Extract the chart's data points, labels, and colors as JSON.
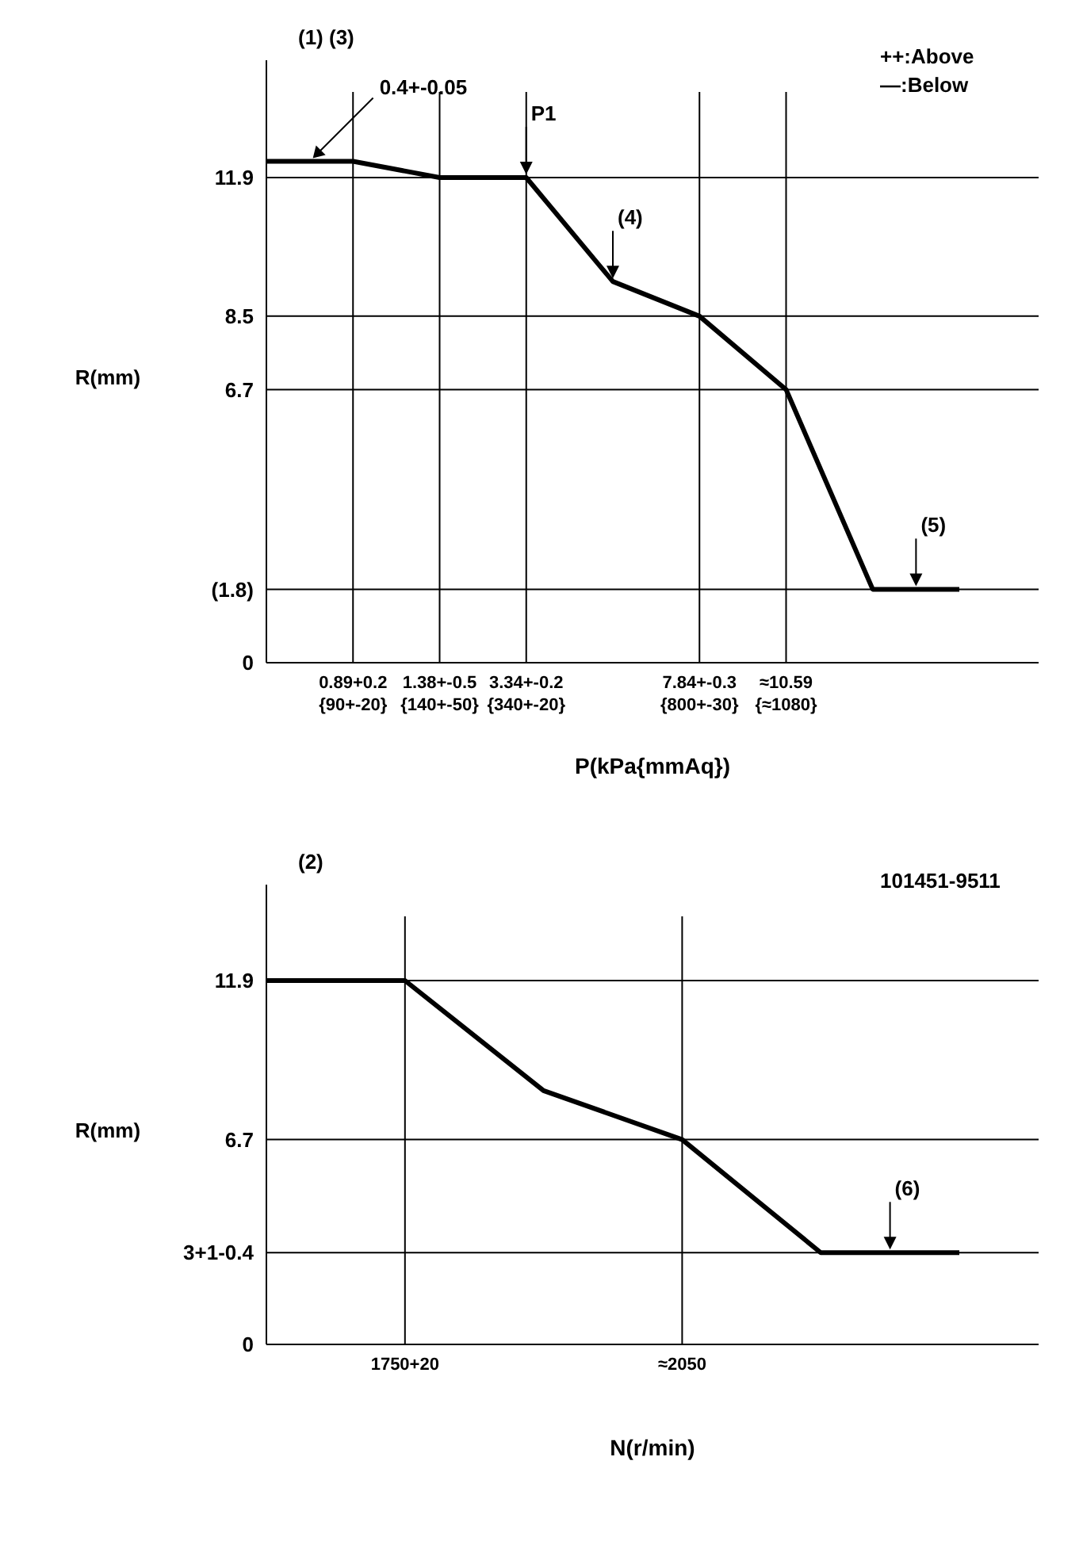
{
  "chart_data": [
    {
      "type": "line",
      "xlabel": "P(kPa{mmAq})",
      "ylabel": "R(mm)",
      "ylim": [
        0,
        14
      ],
      "categories": [
        null,
        "0.89+0.2{90+-20}",
        "1.38+-0.5{140+-50}",
        "3.34+-0.2{340+-20}",
        null,
        "7.84+-0.3{800+-30}",
        "≈10.59{≈1080}",
        null,
        null
      ],
      "yticks": [
        0,
        {
          "value": 1.8,
          "label": "(1.8)"
        },
        6.7,
        8.5,
        11.9
      ],
      "grid": true,
      "series": [
        {
          "color": "#000000",
          "values": [
            12.3,
            12.3,
            11.9,
            11.9,
            9.35,
            8.5,
            6.7,
            1.8,
            1.8
          ]
        }
      ],
      "annotations": [
        "(1) (3)",
        "++:Above",
        "—:Below",
        "0.4+-0.05",
        {
          "text": "(4)",
          "y": 9.35
        },
        {
          "text": "(5)",
          "y": 1.8
        },
        {
          "text": "P1",
          "x": "3.34+-0.2{340+-20}",
          "y": 11.9
        }
      ]
    },
    {
      "type": "line",
      "xlabel": "N(r/min)",
      "ylabel": "R(mm)",
      "ylim": [
        0,
        14
      ],
      "categories": [
        null,
        "1750+20",
        null,
        "≈2050",
        null,
        null
      ],
      "yticks": [
        0,
        {
          "value": 3,
          "label": "3+1-0.4"
        },
        6.7,
        11.9
      ],
      "grid": true,
      "series": [
        {
          "color": "#000000",
          "values": [
            11.9,
            11.9,
            8.3,
            6.7,
            3,
            3
          ]
        }
      ],
      "annotations": [
        "(2)",
        "101451-9511",
        {
          "text": "(6)",
          "y": 3
        }
      ]
    }
  ]
}
